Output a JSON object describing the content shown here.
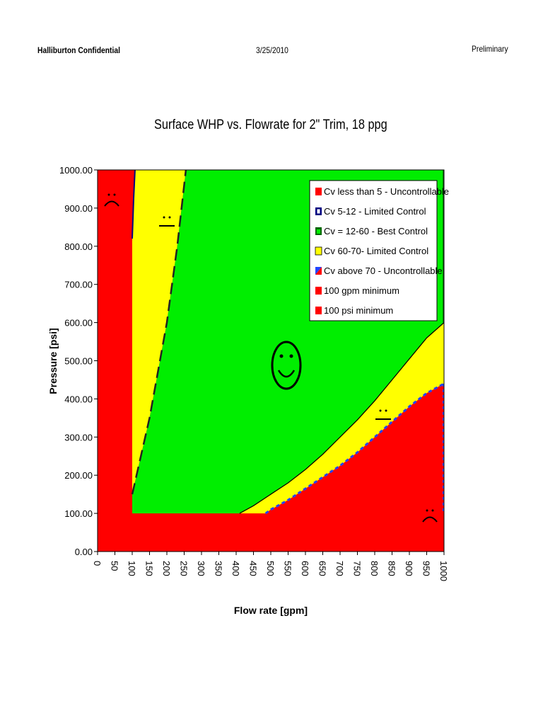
{
  "header": {
    "left": "Halliburton Confidential",
    "center": "3/25/2010",
    "right": "Preliminary"
  },
  "colors": {
    "red": "#ff0000",
    "yellow": "#ffff00",
    "green": "#00ee00",
    "navy": "#000080",
    "blue": "#2244ff"
  },
  "chart_data": {
    "type": "area",
    "title": "Surface WHP vs. Flowrate for 2\" Trim, 18 ppg",
    "xlabel": "Flow rate [gpm]",
    "ylabel": "Pressure [psi]",
    "xlim": [
      0,
      1000
    ],
    "ylim": [
      0,
      1000
    ],
    "x_ticks": [
      "0",
      "50",
      "100",
      "150",
      "200",
      "250",
      "300",
      "350",
      "400",
      "450",
      "500",
      "550",
      "600",
      "650",
      "700",
      "750",
      "800",
      "850",
      "900",
      "950",
      "1000"
    ],
    "y_ticks": [
      "0.00",
      "100.00",
      "200.00",
      "300.00",
      "400.00",
      "500.00",
      "600.00",
      "700.00",
      "800.00",
      "900.00",
      "1000.00"
    ],
    "legend_position": "top-right",
    "legend": [
      {
        "label": "Cv less than 5 - Uncontrollable",
        "swatch": "red"
      },
      {
        "label": "Cv 5-12 - Limited Control",
        "swatch": "navy"
      },
      {
        "label": "Cv = 12-60 - Best Control",
        "swatch": "green"
      },
      {
        "label": "Cv 60-70- Limited Control",
        "swatch": "yellow"
      },
      {
        "label": "Cv above 70 - Uncontrollable",
        "swatch": "blue"
      },
      {
        "label": "100 gpm minimum",
        "swatch": "red"
      },
      {
        "label": "100 psi minimum",
        "swatch": "red"
      }
    ],
    "series": [
      {
        "name": "Cv 5-12 - Limited Control",
        "x": [
          100,
          104,
          108
        ],
        "y": [
          820,
          925,
          1000
        ]
      },
      {
        "name": "Cv = 12-60 - Best Control",
        "x": [
          100,
          150,
          200,
          230,
          255
        ],
        "y": [
          150,
          350,
          600,
          800,
          1000
        ]
      },
      {
        "name": "Cv 60-70- Limited Control",
        "x": [
          410,
          450,
          500,
          550,
          600,
          650,
          700,
          750,
          800,
          850,
          900,
          950,
          1000
        ],
        "y": [
          100,
          120,
          150,
          180,
          215,
          255,
          300,
          345,
          395,
          450,
          505,
          560,
          600
        ]
      },
      {
        "name": "Cv above 70 - Uncontrollable",
        "x": [
          485,
          500,
          550,
          600,
          650,
          700,
          750,
          800,
          850,
          900,
          950,
          1000
        ],
        "y": [
          100,
          110,
          135,
          165,
          195,
          225,
          260,
          300,
          340,
          380,
          415,
          440
        ]
      }
    ],
    "minimums": {
      "gpm": 100,
      "psi": 100
    }
  }
}
